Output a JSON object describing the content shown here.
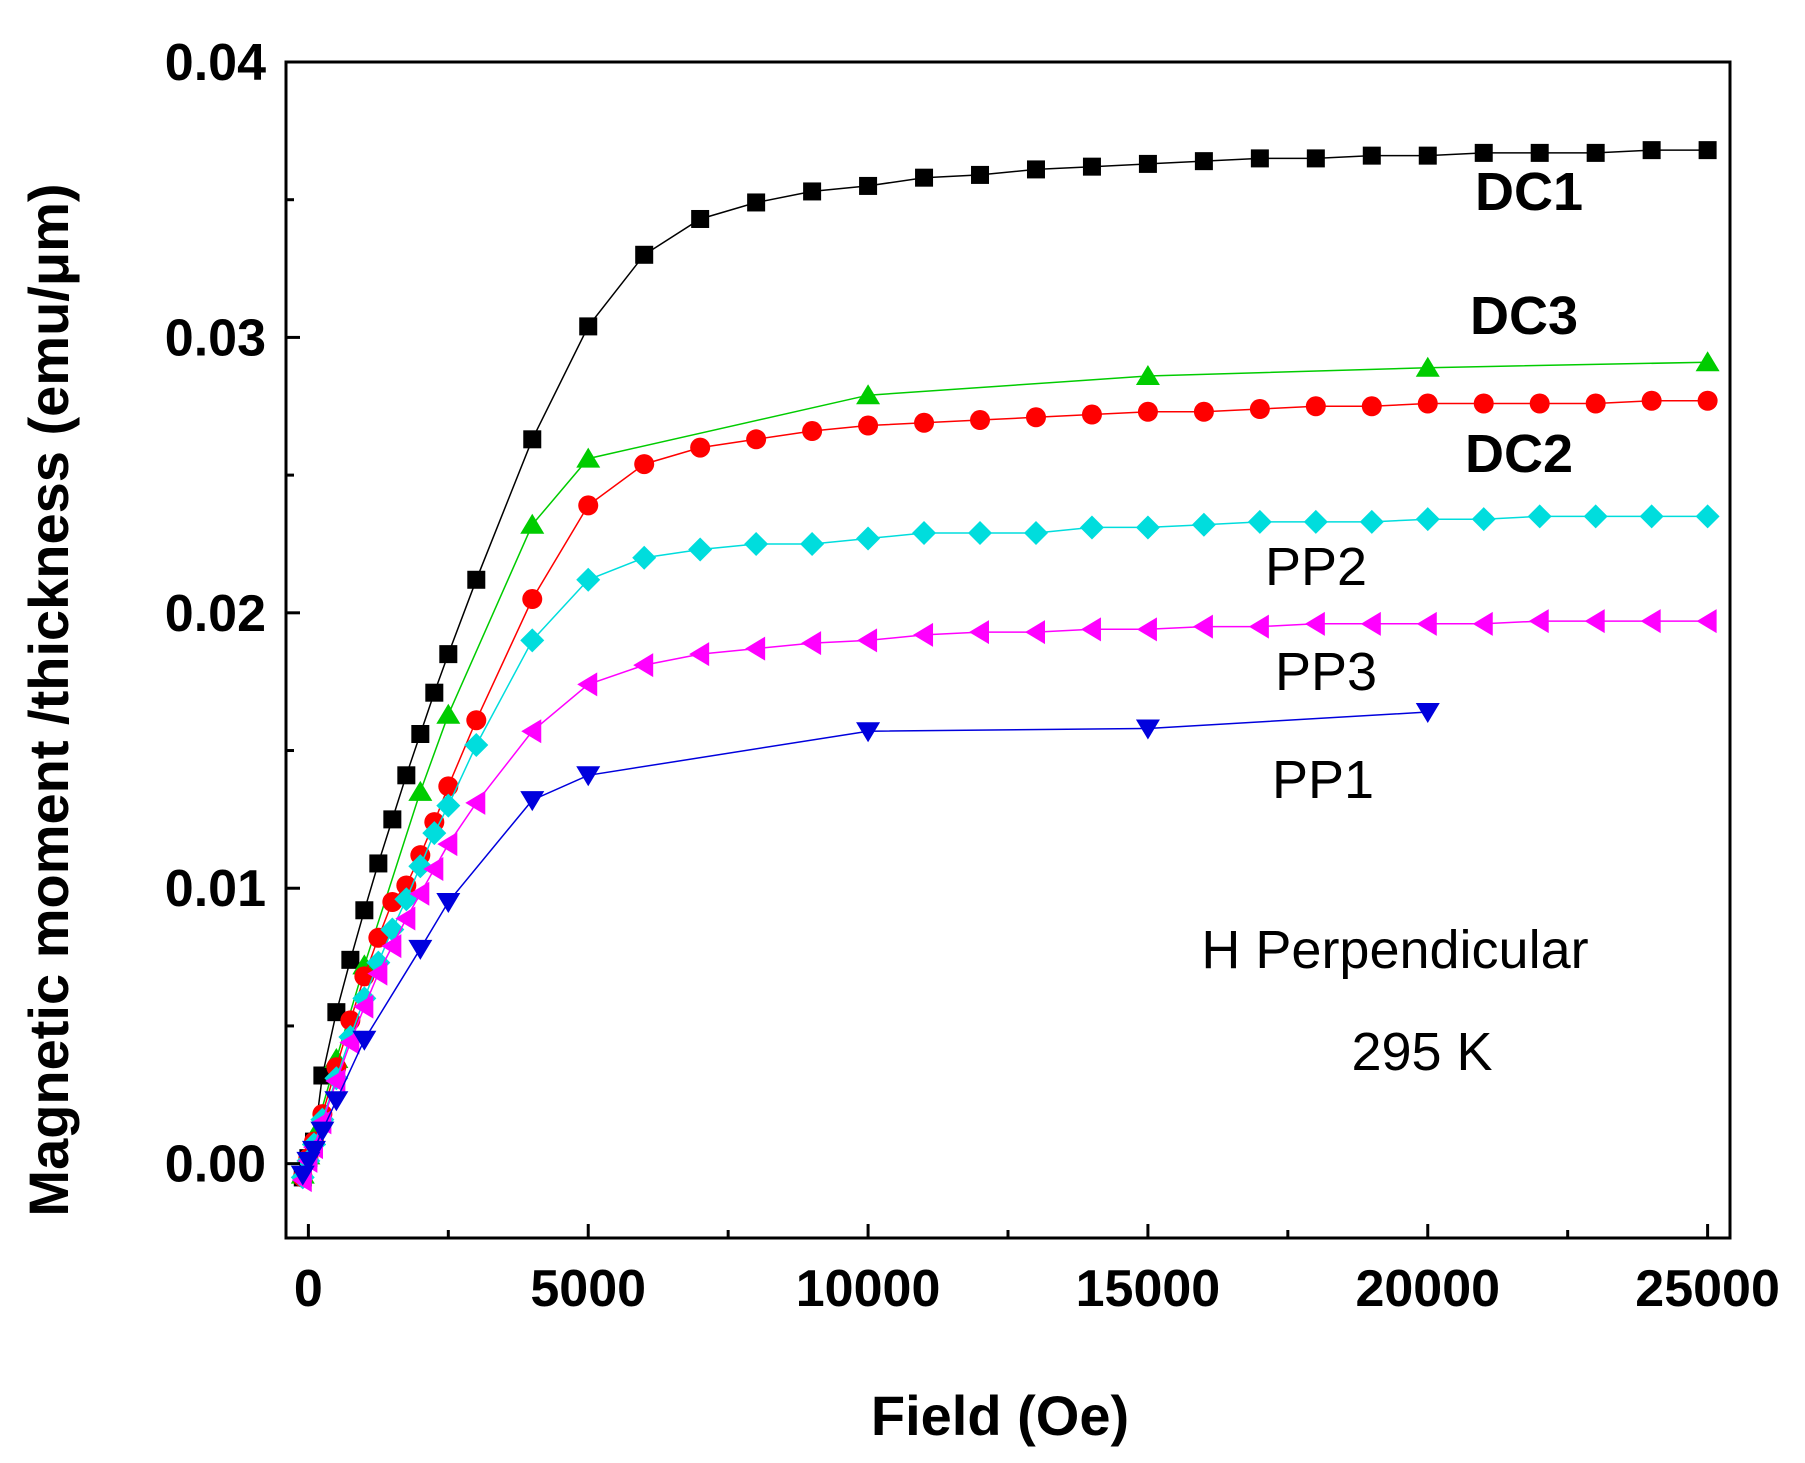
{
  "chart_data": {
    "type": "line",
    "title": "",
    "xlabel": "Field (Oe)",
    "ylabel": "Magnetic moment /thickness (emu/μm)",
    "xlim": [
      -400,
      25400
    ],
    "ylim": [
      -0.0027,
      0.04
    ],
    "xticks": [
      0,
      5000,
      10000,
      15000,
      20000,
      25000
    ],
    "xtick_labels": [
      "0",
      "5000",
      "10000",
      "15000",
      "20000",
      "25000"
    ],
    "yticks": [
      0.0,
      0.01,
      0.02,
      0.03,
      0.04
    ],
    "ytick_labels": [
      "0.00",
      "0.01",
      "0.02",
      "0.03",
      "0.04"
    ],
    "grid": false,
    "annotations": [
      "H Perpendicular",
      "295 K"
    ],
    "series": [
      {
        "name": "DC1",
        "label_bold": true,
        "color": "#000000",
        "marker": "square",
        "x": [
          -100,
          0,
          100,
          250,
          500,
          750,
          1000,
          1250,
          1500,
          1750,
          2000,
          2250,
          2500,
          3000,
          4000,
          5000,
          6000,
          7000,
          8000,
          9000,
          10000,
          11000,
          12000,
          13000,
          14000,
          15000,
          16000,
          17000,
          18000,
          19000,
          20000,
          21000,
          22000,
          23000,
          24000,
          25000
        ],
        "y": [
          -0.0005,
          0.0002,
          0.0008,
          0.0032,
          0.0055,
          0.0074,
          0.0092,
          0.0109,
          0.0125,
          0.0141,
          0.0156,
          0.0171,
          0.0185,
          0.0212,
          0.0263,
          0.0304,
          0.033,
          0.0343,
          0.0349,
          0.0353,
          0.0355,
          0.0358,
          0.0359,
          0.0361,
          0.0362,
          0.0363,
          0.0364,
          0.0365,
          0.0365,
          0.0366,
          0.0366,
          0.0367,
          0.0367,
          0.0367,
          0.0368,
          0.0368
        ]
      },
      {
        "name": "DC3",
        "label_bold": true,
        "color": "#00cc00",
        "marker": "triangle-up",
        "x": [
          -100,
          0,
          100,
          500,
          1000,
          2000,
          2500,
          4000,
          5000,
          10000,
          15000,
          20000,
          25000
        ],
        "y": [
          -0.0004,
          0.0003,
          0.001,
          0.0038,
          0.0072,
          0.0135,
          0.0163,
          0.0232,
          0.0256,
          0.0279,
          0.0286,
          0.0289,
          0.0291
        ]
      },
      {
        "name": "DC2",
        "label_bold": true,
        "color": "#ff0000",
        "marker": "circle",
        "x": [
          -100,
          0,
          100,
          250,
          500,
          750,
          1000,
          1250,
          1500,
          1750,
          2000,
          2250,
          2500,
          3000,
          4000,
          5000,
          6000,
          7000,
          8000,
          9000,
          10000,
          11000,
          12000,
          13000,
          14000,
          15000,
          16000,
          17000,
          18000,
          19000,
          20000,
          21000,
          22000,
          23000,
          24000,
          25000
        ],
        "y": [
          -0.0005,
          0.0002,
          0.0008,
          0.0018,
          0.0035,
          0.0052,
          0.0068,
          0.0082,
          0.0095,
          0.0101,
          0.0112,
          0.0124,
          0.0137,
          0.0161,
          0.0205,
          0.0239,
          0.0254,
          0.026,
          0.0263,
          0.0266,
          0.0268,
          0.0269,
          0.027,
          0.0271,
          0.0272,
          0.0273,
          0.0273,
          0.0274,
          0.0275,
          0.0275,
          0.0276,
          0.0276,
          0.0276,
          0.0276,
          0.0277,
          0.0277
        ]
      },
      {
        "name": "PP2",
        "label_bold": false,
        "color": "#00dddd",
        "marker": "diamond",
        "x": [
          -100,
          0,
          100,
          250,
          500,
          750,
          1000,
          1250,
          1500,
          1750,
          2000,
          2250,
          2500,
          3000,
          4000,
          5000,
          6000,
          7000,
          8000,
          9000,
          10000,
          11000,
          12000,
          13000,
          14000,
          15000,
          16000,
          17000,
          18000,
          19000,
          20000,
          21000,
          22000,
          23000,
          24000,
          25000
        ],
        "y": [
          -0.0005,
          0.0001,
          0.0007,
          0.0016,
          0.0031,
          0.0046,
          0.006,
          0.0073,
          0.0085,
          0.0096,
          0.0108,
          0.012,
          0.013,
          0.0152,
          0.019,
          0.0212,
          0.022,
          0.0223,
          0.0225,
          0.0225,
          0.0227,
          0.0229,
          0.0229,
          0.0229,
          0.0231,
          0.0231,
          0.0232,
          0.0233,
          0.0233,
          0.0233,
          0.0234,
          0.0234,
          0.0235,
          0.0235,
          0.0235,
          0.0235
        ]
      },
      {
        "name": "PP3",
        "label_bold": false,
        "color": "#ff00ff",
        "marker": "triangle-left",
        "x": [
          -100,
          0,
          100,
          250,
          500,
          750,
          1000,
          1250,
          1500,
          1750,
          2000,
          2250,
          2500,
          3000,
          4000,
          5000,
          6000,
          7000,
          8000,
          9000,
          10000,
          11000,
          12000,
          13000,
          14000,
          15000,
          16000,
          17000,
          18000,
          19000,
          20000,
          21000,
          22000,
          23000,
          24000,
          25000
        ],
        "y": [
          -0.0006,
          0.0001,
          0.0006,
          0.0015,
          0.003,
          0.0044,
          0.0057,
          0.0069,
          0.0079,
          0.0089,
          0.0098,
          0.0107,
          0.0116,
          0.0131,
          0.0157,
          0.0174,
          0.0181,
          0.0185,
          0.0187,
          0.0189,
          0.019,
          0.0192,
          0.0193,
          0.0193,
          0.0194,
          0.0194,
          0.0195,
          0.0195,
          0.0196,
          0.0196,
          0.0196,
          0.0196,
          0.0197,
          0.0197,
          0.0197,
          0.0197
        ]
      },
      {
        "name": "PP1",
        "label_bold": false,
        "color": "#0000dd",
        "marker": "triangle-down",
        "x": [
          -100,
          0,
          100,
          250,
          500,
          1000,
          2000,
          2500,
          4000,
          5000,
          10000,
          15000,
          20000
        ],
        "y": [
          -0.0004,
          0.0001,
          0.0005,
          0.0012,
          0.0023,
          0.0045,
          0.0078,
          0.0095,
          0.0132,
          0.0141,
          0.0157,
          0.0158,
          0.0164
        ]
      }
    ]
  }
}
